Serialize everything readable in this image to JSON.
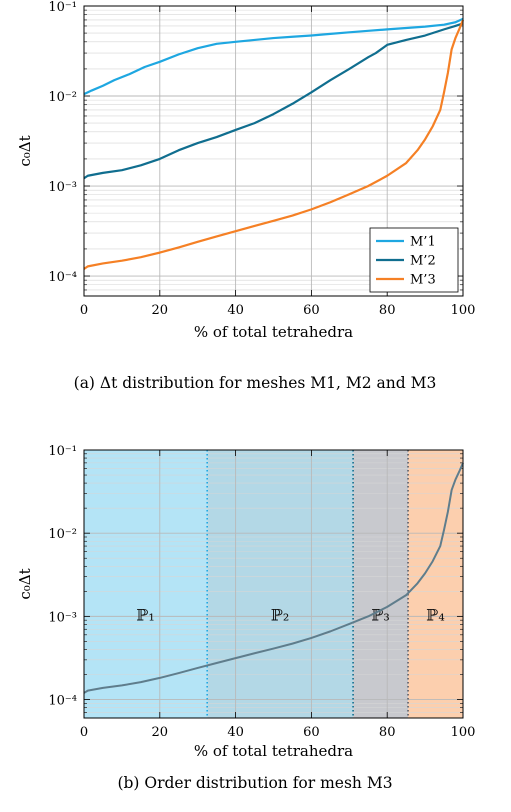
{
  "chart_data": [
    {
      "type": "line",
      "xlabel": "% of total tetrahedra",
      "ylabel": "c₀Δt",
      "x_ticks": [
        "0",
        "20",
        "40",
        "60",
        "80",
        "100"
      ],
      "y_ticks": [
        "10⁻⁴",
        "10⁻³",
        "10⁻²",
        "10⁻¹"
      ],
      "xlim": [
        0,
        100
      ],
      "ylim": [
        6e-05,
        0.1
      ],
      "y_scale": "log",
      "grid": true,
      "legend_position": "bottom-right",
      "caption": "(a) Δt distribution for meshes M1, M2 and M3",
      "series": [
        {
          "name": "M’1",
          "color": "#1ea7e1",
          "x": [
            0,
            2,
            5,
            8,
            12,
            16,
            20,
            25,
            30,
            35,
            40,
            45,
            50,
            55,
            60,
            65,
            70,
            75,
            80,
            85,
            90,
            95,
            98,
            100
          ],
          "y": [
            0.0105,
            0.0115,
            0.013,
            0.015,
            0.0175,
            0.021,
            0.024,
            0.029,
            0.034,
            0.038,
            0.04,
            0.042,
            0.044,
            0.0455,
            0.047,
            0.049,
            0.051,
            0.053,
            0.055,
            0.057,
            0.059,
            0.062,
            0.066,
            0.072
          ]
        },
        {
          "name": "M’2",
          "color": "#106e8f",
          "x": [
            0,
            1,
            5,
            10,
            15,
            20,
            25,
            30,
            35,
            40,
            45,
            50,
            55,
            60,
            65,
            70,
            75,
            77,
            80,
            85,
            90,
            95,
            98,
            100
          ],
          "y": [
            0.00122,
            0.0013,
            0.0014,
            0.0015,
            0.0017,
            0.002,
            0.0025,
            0.003,
            0.0035,
            0.0042,
            0.005,
            0.0063,
            0.0082,
            0.011,
            0.015,
            0.02,
            0.027,
            0.03,
            0.037,
            0.042,
            0.047,
            0.055,
            0.06,
            0.064
          ]
        },
        {
          "name": "M’3",
          "color": "#f58025",
          "x": [
            0,
            1,
            5,
            10,
            15,
            20,
            25,
            30,
            35,
            40,
            45,
            50,
            55,
            60,
            65,
            70,
            75,
            80,
            85,
            88,
            90,
            92,
            94,
            95,
            96,
            97,
            98,
            99,
            100
          ],
          "y": [
            0.00012,
            0.000128,
            0.000138,
            0.000148,
            0.000162,
            0.000182,
            0.000208,
            0.00024,
            0.000275,
            0.000315,
            0.00036,
            0.00041,
            0.00047,
            0.00055,
            0.00066,
            0.00081,
            0.001,
            0.0013,
            0.0018,
            0.0025,
            0.0033,
            0.0046,
            0.007,
            0.011,
            0.018,
            0.033,
            0.044,
            0.055,
            0.07
          ]
        }
      ]
    },
    {
      "type": "line",
      "xlabel": "% of total tetrahedra",
      "ylabel": "c₀Δt",
      "x_ticks": [
        "0",
        "20",
        "40",
        "60",
        "80",
        "100"
      ],
      "y_ticks": [
        "10⁻⁴",
        "10⁻³",
        "10⁻²",
        "10⁻¹"
      ],
      "xlim": [
        0,
        100
      ],
      "ylim": [
        6e-05,
        0.1
      ],
      "y_scale": "log",
      "grid": true,
      "caption": "(b) Order distribution for mesh M3",
      "regions": [
        {
          "label": "ℙ₁",
          "x_start": 0,
          "x_end": 32.5,
          "color": "#b4e4f6",
          "divider_color": "#1ea7e1"
        },
        {
          "label": "ℙ₂",
          "x_start": 32.5,
          "x_end": 71,
          "color": "#b3d8e6",
          "divider_color": "#106e8f"
        },
        {
          "label": "ℙ₃",
          "x_start": 71,
          "x_end": 85.5,
          "color": "#c8c9ce",
          "divider_color": "#5a5c66"
        },
        {
          "label": "ℙ₄",
          "x_start": 85.5,
          "x_end": 100,
          "color": "#fccfae",
          "divider_color": "#f58025"
        }
      ],
      "series": [
        {
          "color": "#5f7d8c",
          "x": [
            0,
            1,
            5,
            10,
            15,
            20,
            25,
            30,
            35,
            40,
            45,
            50,
            55,
            60,
            65,
            70,
            75,
            80,
            85,
            88,
            90,
            92,
            94,
            95,
            96,
            97,
            98,
            99,
            100
          ],
          "y": [
            0.00012,
            0.000128,
            0.000138,
            0.000148,
            0.000162,
            0.000182,
            0.000208,
            0.00024,
            0.000275,
            0.000315,
            0.00036,
            0.00041,
            0.00047,
            0.00055,
            0.00066,
            0.00081,
            0.001,
            0.0013,
            0.0018,
            0.0025,
            0.0033,
            0.0046,
            0.007,
            0.011,
            0.018,
            0.033,
            0.044,
            0.055,
            0.07
          ]
        }
      ]
    }
  ]
}
